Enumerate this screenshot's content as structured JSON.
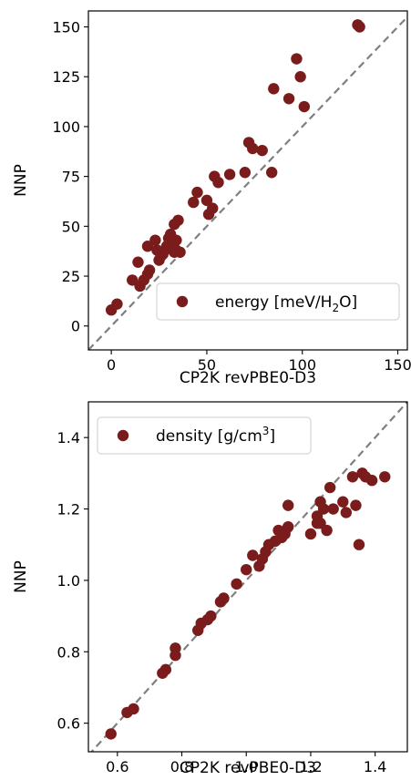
{
  "chart_data": [
    {
      "type": "scatter",
      "xlabel": "CP2K revPBE0-D3",
      "ylabel": "NNP",
      "xlim": [
        -12,
        155
      ],
      "ylim": [
        -12,
        158
      ],
      "xticks": [
        0,
        50,
        100,
        150
      ],
      "yticks": [
        0,
        25,
        50,
        75,
        100,
        125,
        150
      ],
      "diagonal": true,
      "legend_position": "lower-right",
      "marker_color": "#7a1c1c",
      "diagonal_color": "#7f7f7f",
      "series": [
        {
          "name_parts": [
            "energy [meV/H",
            "2",
            "O]"
          ],
          "x": [
            0,
            3,
            11,
            14,
            15,
            17,
            19,
            19,
            20,
            23,
            24,
            25,
            26,
            27,
            28,
            29,
            30,
            31,
            31,
            32,
            33,
            33,
            34,
            34,
            35,
            36,
            43,
            45,
            50,
            51,
            53,
            54,
            56,
            62,
            70,
            72,
            74,
            79,
            84,
            85,
            93,
            97,
            99,
            101,
            129,
            130
          ],
          "y": [
            8,
            11,
            23,
            32,
            20,
            23,
            26,
            40,
            28,
            43,
            38,
            33,
            35,
            36,
            38,
            40,
            44,
            42,
            46,
            40,
            51,
            37,
            38,
            43,
            53,
            37,
            62,
            67,
            63,
            56,
            59,
            75,
            72,
            76,
            77,
            92,
            89,
            88,
            77,
            119,
            114,
            134,
            125,
            110,
            151,
            150
          ]
        }
      ]
    },
    {
      "type": "scatter",
      "xlabel": "CP2K revPBE0-D3",
      "ylabel": "NNP",
      "xlim": [
        0.51,
        1.5
      ],
      "ylim": [
        0.52,
        1.5
      ],
      "xticks": [
        0.6,
        0.8,
        1.0,
        1.2,
        1.4
      ],
      "yticks": [
        0.6,
        0.8,
        1.0,
        1.2,
        1.4
      ],
      "tick_labels": [
        "0.6",
        "0.8",
        "1.0",
        "1.2",
        "1.4"
      ],
      "diagonal": true,
      "legend_position": "top-left",
      "marker_color": "#7a1c1c",
      "diagonal_color": "#7f7f7f",
      "series": [
        {
          "name_parts": [
            "density [g/cm",
            "3",
            "]"
          ],
          "x": [
            0.58,
            0.63,
            0.65,
            0.74,
            0.75,
            0.78,
            0.78,
            0.85,
            0.86,
            0.88,
            0.89,
            0.92,
            0.93,
            0.97,
            1.0,
            1.02,
            1.04,
            1.05,
            1.06,
            1.07,
            1.09,
            1.1,
            1.11,
            1.12,
            1.13,
            1.13,
            1.2,
            1.22,
            1.22,
            1.23,
            1.23,
            1.24,
            1.25,
            1.26,
            1.27,
            1.3,
            1.31,
            1.33,
            1.34,
            1.35,
            1.36,
            1.37,
            1.39,
            1.43
          ],
          "y": [
            0.57,
            0.63,
            0.64,
            0.74,
            0.75,
            0.79,
            0.81,
            0.86,
            0.88,
            0.89,
            0.9,
            0.94,
            0.95,
            0.99,
            1.03,
            1.07,
            1.04,
            1.06,
            1.08,
            1.1,
            1.11,
            1.14,
            1.12,
            1.13,
            1.15,
            1.21,
            1.13,
            1.16,
            1.18,
            1.22,
            1.16,
            1.2,
            1.14,
            1.26,
            1.2,
            1.22,
            1.19,
            1.29,
            1.21,
            1.1,
            1.3,
            1.29,
            1.28,
            1.29
          ]
        }
      ]
    }
  ]
}
